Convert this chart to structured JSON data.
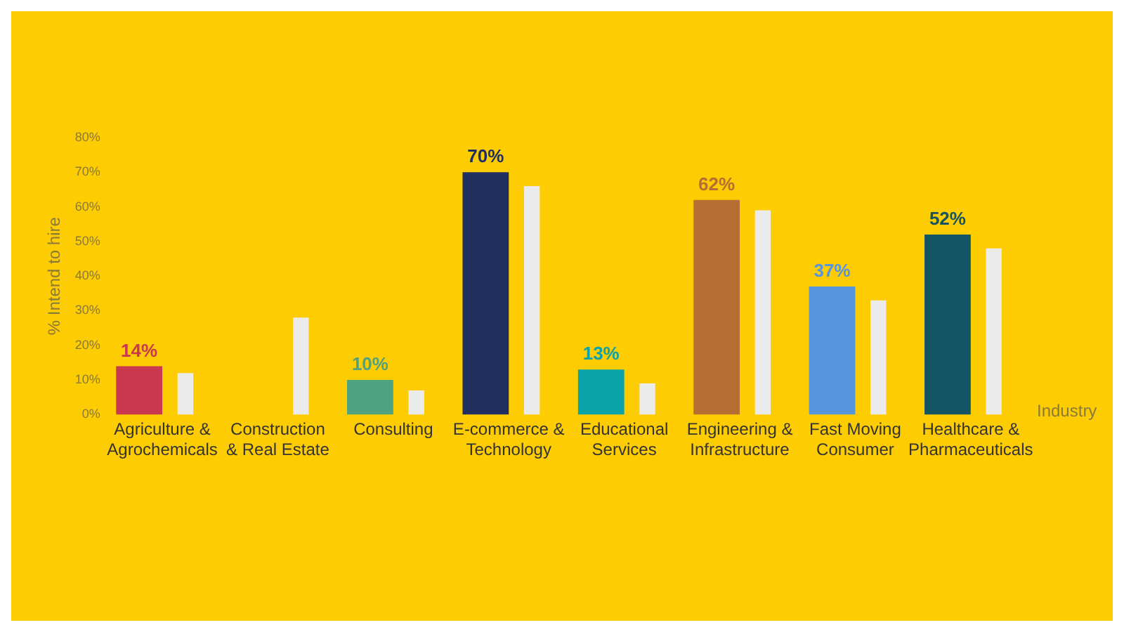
{
  "chart_data": {
    "type": "bar",
    "xlabel": "Industry",
    "ylabel": "% Intend to hire",
    "categories": [
      "Agriculture & Agrochemicals",
      "Construction & Real Estate",
      "Consulting",
      "E-commerce & Technology",
      "Educational Services",
      "Engineering & Infrastructure",
      "Fast Moving Consumer",
      "Healthcare & Pharmaceuticals"
    ],
    "series": [
      {
        "colors": [
          "#c9384f",
          "#c9384f",
          "#4fa382",
          "#1f3060",
          "#0aa3a8",
          "#b86e32",
          "#5795dd",
          "#145563"
        ],
        "values": [
          14,
          null,
          10,
          70,
          13,
          62,
          37,
          52
        ],
        "value_labels": [
          "14%",
          null,
          "10%",
          "70%",
          "13%",
          "62%",
          "37%",
          "52%"
        ]
      },
      {
        "color": "#ebebeb",
        "values": [
          12,
          28,
          7,
          66,
          9,
          59,
          33,
          48
        ]
      }
    ],
    "ylim": [
      0,
      80
    ],
    "yticks": [
      {
        "value": 0,
        "label": "0%"
      },
      {
        "value": 10,
        "label": "10%"
      },
      {
        "value": 20,
        "label": "20%"
      },
      {
        "value": 30,
        "label": "30%"
      },
      {
        "value": 40,
        "label": "40%"
      },
      {
        "value": 50,
        "label": "50%"
      },
      {
        "value": 60,
        "label": "60%"
      },
      {
        "value": 70,
        "label": "70%"
      },
      {
        "value": 80,
        "label": "80%"
      }
    ],
    "grid": false,
    "legend": false
  }
}
